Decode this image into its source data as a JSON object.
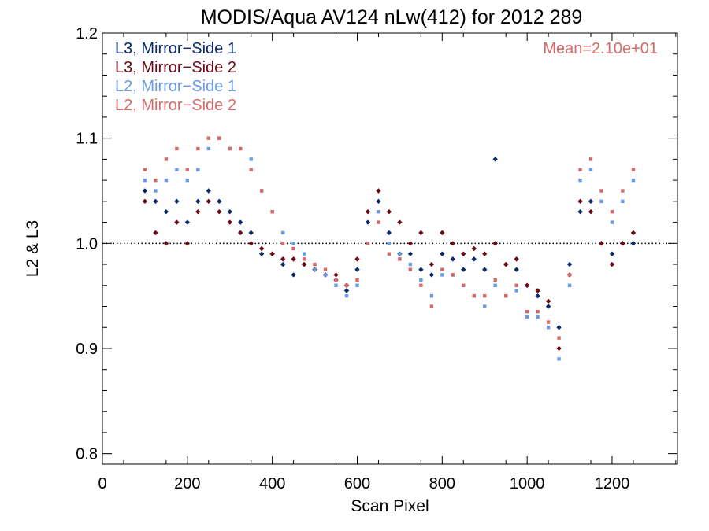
{
  "chart_data": {
    "type": "scatter",
    "title": "MODIS/Aqua AV124 nLw(412) for 2012 289",
    "xlabel": "Scan Pixel",
    "ylabel": "L2 & L3",
    "xlim": [
      0,
      1354
    ],
    "ylim": [
      0.79,
      1.2
    ],
    "x_ticks": [
      0,
      200,
      400,
      600,
      800,
      1000,
      1200
    ],
    "x_tick_labels": [
      "0",
      "200",
      "400",
      "600",
      "800",
      "1000",
      "1200"
    ],
    "y_ticks": [
      0.8,
      0.9,
      1.0,
      1.1,
      1.2
    ],
    "y_tick_labels": [
      "0.8",
      "0.9",
      "1.0",
      "1.1",
      "1.2"
    ],
    "reference_line": 1.0,
    "annotation": "Mean=2.10e+01",
    "annotation_color": "#d36b6b",
    "legend_position": "top-left",
    "series": [
      {
        "name": "L3, Mirror−Side 1",
        "color": "#0a2a6b",
        "marker": "diamond",
        "x": [
          100,
          125,
          150,
          175,
          200,
          225,
          250,
          275,
          300,
          325,
          350,
          375,
          400,
          425,
          450,
          475,
          500,
          525,
          550,
          575,
          600,
          625,
          650,
          675,
          700,
          725,
          750,
          775,
          800,
          825,
          850,
          875,
          900,
          925,
          950,
          975,
          1000,
          1025,
          1050,
          1075,
          1100,
          1125,
          1150,
          1175,
          1200,
          1225,
          1250
        ],
        "y": [
          1.05,
          1.04,
          1.03,
          1.04,
          1.02,
          1.04,
          1.05,
          1.04,
          1.03,
          1.02,
          1.01,
          0.99,
          0.99,
          0.98,
          0.97,
          0.98,
          0.975,
          0.97,
          0.965,
          0.955,
          0.975,
          1.02,
          1.04,
          1.01,
          0.99,
          0.99,
          0.975,
          0.97,
          0.99,
          0.985,
          0.975,
          0.985,
          0.975,
          1.08,
          0.98,
          0.975,
          0.96,
          0.95,
          0.94,
          0.92,
          0.98,
          1.03,
          1.04,
          1.0,
          0.99,
          1.0,
          1.0
        ]
      },
      {
        "name": "L3, Mirror−Side 2",
        "color": "#6b0a14",
        "marker": "diamond",
        "x": [
          100,
          125,
          150,
          175,
          200,
          225,
          250,
          275,
          300,
          325,
          350,
          375,
          400,
          425,
          450,
          475,
          500,
          525,
          550,
          575,
          600,
          625,
          650,
          675,
          700,
          725,
          750,
          775,
          800,
          825,
          850,
          875,
          900,
          925,
          950,
          975,
          1000,
          1025,
          1050,
          1075,
          1100,
          1125,
          1150,
          1175,
          1200,
          1225,
          1250
        ],
        "y": [
          1.04,
          1.01,
          1.0,
          1.02,
          1.0,
          1.03,
          1.04,
          1.03,
          1.02,
          1.01,
          1.0,
          0.995,
          0.99,
          0.985,
          0.985,
          0.98,
          0.975,
          0.97,
          0.97,
          0.96,
          0.985,
          1.03,
          1.05,
          1.03,
          1.02,
          1.0,
          1.01,
          0.98,
          1.01,
          1.0,
          0.99,
          0.995,
          0.99,
          1.0,
          0.98,
          0.985,
          0.96,
          0.955,
          0.945,
          0.9,
          0.97,
          1.04,
          1.03,
          1.0,
          0.98,
          1.0,
          1.01
        ]
      },
      {
        "name": "L2, Mirror−Side 1",
        "color": "#6a9be6",
        "marker": "square",
        "x": [
          100,
          125,
          150,
          175,
          200,
          225,
          250,
          275,
          300,
          325,
          350,
          375,
          400,
          425,
          450,
          475,
          500,
          525,
          550,
          575,
          600,
          625,
          650,
          675,
          700,
          725,
          750,
          775,
          800,
          825,
          850,
          875,
          900,
          925,
          950,
          975,
          1000,
          1025,
          1050,
          1075,
          1100,
          1125,
          1150,
          1175,
          1200,
          1225,
          1250
        ],
        "y": [
          1.06,
          1.05,
          1.06,
          1.07,
          1.06,
          1.07,
          1.09,
          1.1,
          1.09,
          1.09,
          1.08,
          1.05,
          1.03,
          1.01,
          1.0,
          0.99,
          0.975,
          0.97,
          0.96,
          0.95,
          0.96,
          1.0,
          1.03,
          1.0,
          0.99,
          0.98,
          0.965,
          0.95,
          0.97,
          0.97,
          0.96,
          0.95,
          0.94,
          0.96,
          0.95,
          0.955,
          0.93,
          0.93,
          0.92,
          0.89,
          0.96,
          1.06,
          1.07,
          1.04,
          1.02,
          1.04,
          1.06
        ]
      },
      {
        "name": "L2, Mirror−Side 2",
        "color": "#d36b6b",
        "marker": "square",
        "x": [
          100,
          125,
          150,
          175,
          200,
          225,
          250,
          275,
          300,
          325,
          350,
          375,
          400,
          425,
          450,
          475,
          500,
          525,
          550,
          575,
          600,
          625,
          650,
          675,
          700,
          725,
          750,
          775,
          800,
          825,
          850,
          875,
          900,
          925,
          950,
          975,
          1000,
          1025,
          1050,
          1075,
          1100,
          1125,
          1150,
          1175,
          1200,
          1225,
          1250
        ],
        "y": [
          1.07,
          1.06,
          1.08,
          1.09,
          1.07,
          1.09,
          1.1,
          1.1,
          1.09,
          1.09,
          1.07,
          1.05,
          1.03,
          1.0,
          0.995,
          0.985,
          0.98,
          0.975,
          0.965,
          0.96,
          0.965,
          1.0,
          1.02,
          0.99,
          0.985,
          0.975,
          0.96,
          0.94,
          0.975,
          0.97,
          0.96,
          0.95,
          0.95,
          0.965,
          0.95,
          0.96,
          0.935,
          0.935,
          0.925,
          0.91,
          0.97,
          1.07,
          1.08,
          1.05,
          1.03,
          1.05,
          1.07
        ]
      }
    ]
  }
}
